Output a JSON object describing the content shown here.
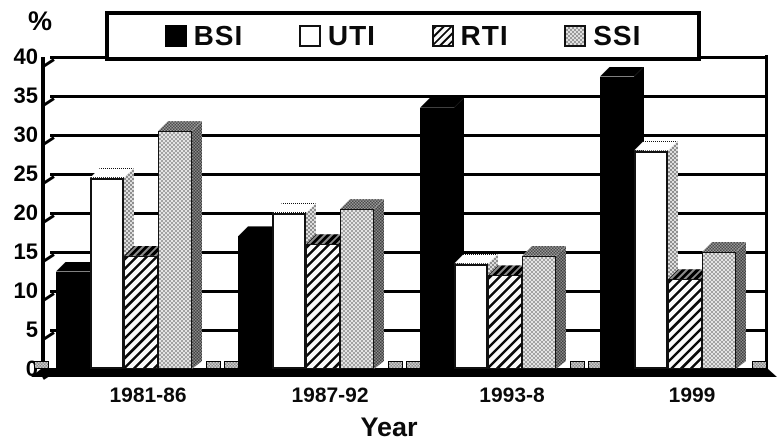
{
  "chart_data": {
    "type": "bar",
    "title": "",
    "ylabel": "%",
    "xlabel": "Year",
    "ylim": [
      0,
      40
    ],
    "yticks": [
      0,
      5,
      10,
      15,
      20,
      25,
      30,
      35,
      40
    ],
    "grid": true,
    "legend_position": "top",
    "categories": [
      "1981-86",
      "1987-92",
      "1993-8",
      "1999"
    ],
    "series": [
      {
        "name": "BSI",
        "fill": "black",
        "values": [
          12.5,
          17,
          33.5,
          37.5
        ]
      },
      {
        "name": "UTI",
        "fill": "white",
        "values": [
          24.5,
          20,
          13.5,
          28
        ]
      },
      {
        "name": "RTI",
        "fill": "hatch",
        "values": [
          14.5,
          16,
          12,
          11.5
        ]
      },
      {
        "name": "SSI",
        "fill": "checker",
        "values": [
          30.5,
          20.5,
          14.5,
          15
        ]
      }
    ]
  },
  "colors": {
    "background": "#ffffff",
    "line": "#000000",
    "bar_black": "#000000",
    "bar_white": "#ffffff",
    "bar_gray": "#a2a2a2"
  }
}
